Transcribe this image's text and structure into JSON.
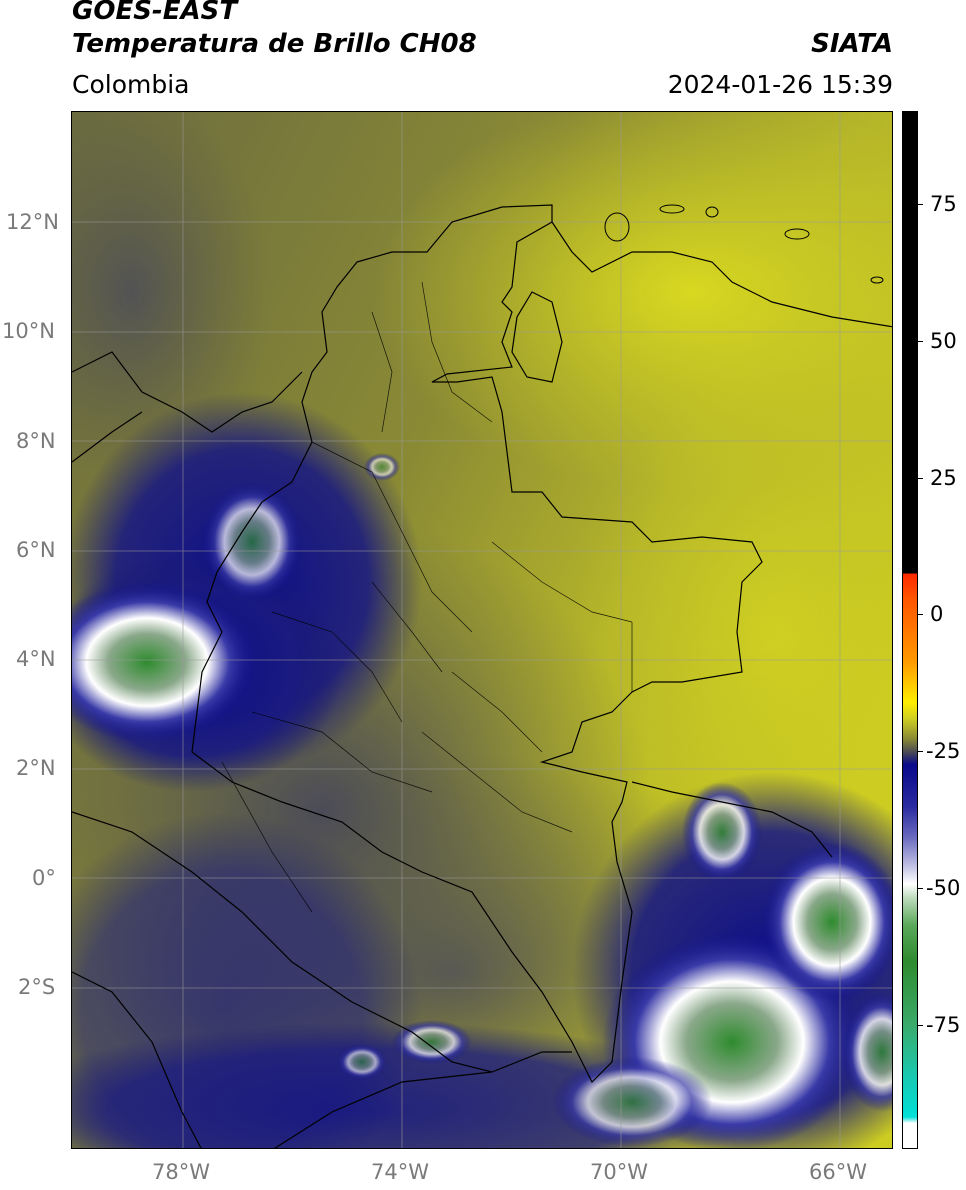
{
  "header": {
    "satellite": "GOES-EAST",
    "product": "Temperatura de Brillo CH08",
    "agency": "SIATA",
    "region": "Colombia",
    "datetime": "2024-01-26 15:39"
  },
  "map": {
    "lat_labels": [
      "12°N",
      "10°N",
      "8°N",
      "6°N",
      "4°N",
      "2°N",
      "0°",
      "2°S"
    ],
    "lon_labels": [
      "78°W",
      "74°W",
      "70°W",
      "66°W"
    ]
  },
  "colorbar": {
    "labels": [
      "75",
      "50",
      "25",
      "0",
      "-25",
      "-50",
      "-75"
    ],
    "colors": {
      "black": "#000000",
      "red": "#ff2a00",
      "orange": "#ff9900",
      "yellow": "#ffee00",
      "olive": "#a7a82a",
      "darkgray": "#4a4a55",
      "navy": "#0a0a8c",
      "white": "#ffffff",
      "green": "#2e8b2e",
      "cyan": "#00e0d8"
    }
  }
}
